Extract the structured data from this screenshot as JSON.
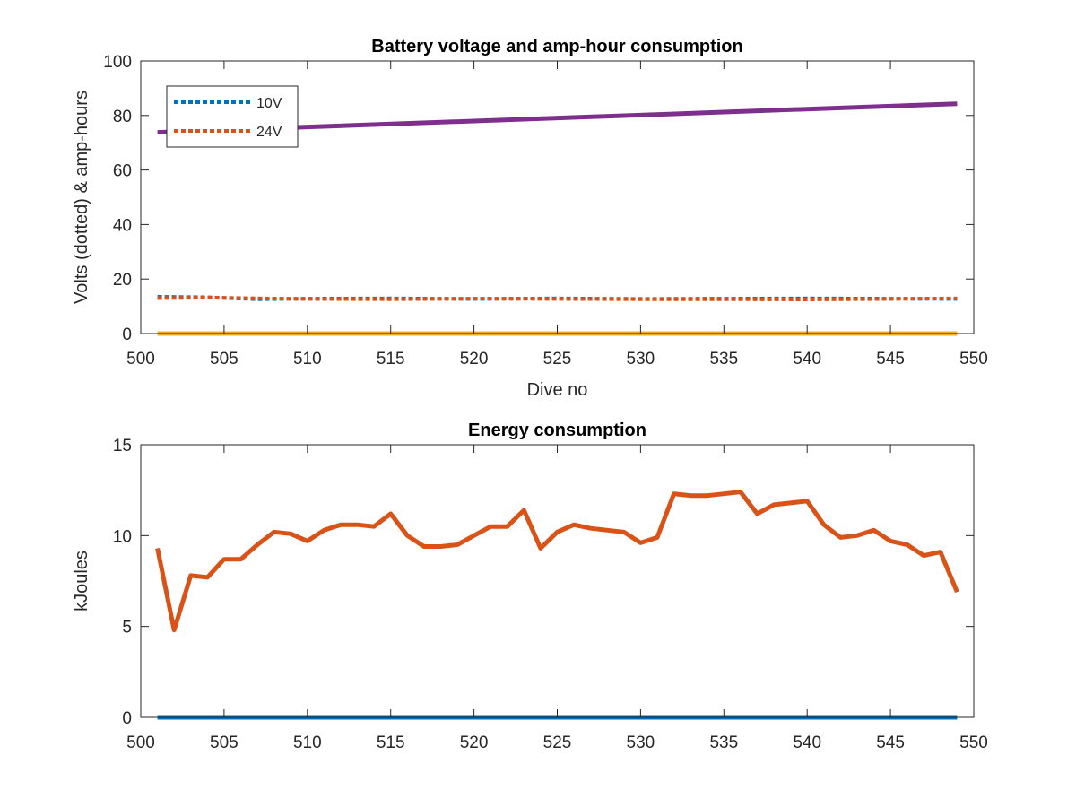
{
  "colors": {
    "blue": "#0072BD",
    "orange": "#D95319",
    "yellow": "#EDB120",
    "purple": "#7E2F8E",
    "axis": "#262626"
  },
  "chart_data": [
    {
      "type": "line",
      "title": "Battery voltage and amp-hour consumption",
      "xlabel": "Dive no",
      "ylabel": "Volts (dotted) & amp-hours",
      "xlim": [
        500,
        550
      ],
      "ylim": [
        0,
        100
      ],
      "xticks": [
        500,
        505,
        510,
        515,
        520,
        525,
        530,
        535,
        540,
        545,
        550
      ],
      "yticks": [
        0,
        20,
        40,
        60,
        80,
        100
      ],
      "grid": false,
      "legend_position": "top-left",
      "legend": [
        "10V",
        "24V"
      ],
      "series": [
        {
          "name": "10V",
          "style": "dotted",
          "color": "blue",
          "x": [
            501,
            504,
            507,
            510,
            515,
            520,
            525,
            530,
            535,
            540,
            545,
            549
          ],
          "values": [
            13.5,
            13.3,
            12.6,
            12.8,
            12.9,
            12.7,
            12.9,
            12.7,
            12.8,
            12.9,
            12.8,
            12.7
          ]
        },
        {
          "name": "24V",
          "style": "dotted",
          "color": "orange",
          "x": [
            501,
            504,
            507,
            510,
            515,
            520,
            525,
            530,
            535,
            540,
            545,
            549
          ],
          "values": [
            13.0,
            13.2,
            12.9,
            12.7,
            12.6,
            12.8,
            12.7,
            12.6,
            12.6,
            12.5,
            12.7,
            12.9
          ]
        },
        {
          "style": "solid",
          "color": "yellow",
          "x": [
            501,
            549
          ],
          "values": [
            0,
            0
          ]
        },
        {
          "style": "solid",
          "color": "purple",
          "x": [
            501,
            549
          ],
          "values": [
            73.8,
            84.3
          ]
        }
      ]
    },
    {
      "type": "line",
      "title": "Energy consumption",
      "xlabel": "",
      "ylabel": "kJoules",
      "xlim": [
        500,
        550
      ],
      "ylim": [
        0,
        15
      ],
      "xticks": [
        500,
        505,
        510,
        515,
        520,
        525,
        530,
        535,
        540,
        545,
        550
      ],
      "yticks": [
        0,
        5,
        10,
        15
      ],
      "grid": false,
      "series": [
        {
          "style": "solid",
          "color": "blue",
          "x": [
            501,
            549
          ],
          "values": [
            0,
            0
          ]
        },
        {
          "style": "solid",
          "color": "orange",
          "x": [
            501,
            502,
            503,
            504,
            505,
            506,
            507,
            508,
            509,
            510,
            511,
            512,
            513,
            514,
            515,
            516,
            517,
            518,
            519,
            520,
            521,
            522,
            523,
            524,
            525,
            526,
            527,
            528,
            529,
            530,
            531,
            532,
            533,
            534,
            535,
            536,
            537,
            538,
            539,
            540,
            541,
            542,
            543,
            544,
            545,
            546,
            547,
            548,
            549
          ],
          "values": [
            9.3,
            4.8,
            7.8,
            7.7,
            8.7,
            8.7,
            9.5,
            10.2,
            10.1,
            9.7,
            10.3,
            10.6,
            10.6,
            10.5,
            11.2,
            10.0,
            9.4,
            9.4,
            9.5,
            10.0,
            10.5,
            10.5,
            11.4,
            9.3,
            10.2,
            10.6,
            10.4,
            10.3,
            10.2,
            9.6,
            9.9,
            12.3,
            12.2,
            12.2,
            12.3,
            12.4,
            11.2,
            11.7,
            11.8,
            11.9,
            10.6,
            9.9,
            10.0,
            10.3,
            9.7,
            9.5,
            8.9,
            9.1,
            6.9
          ]
        }
      ]
    }
  ]
}
